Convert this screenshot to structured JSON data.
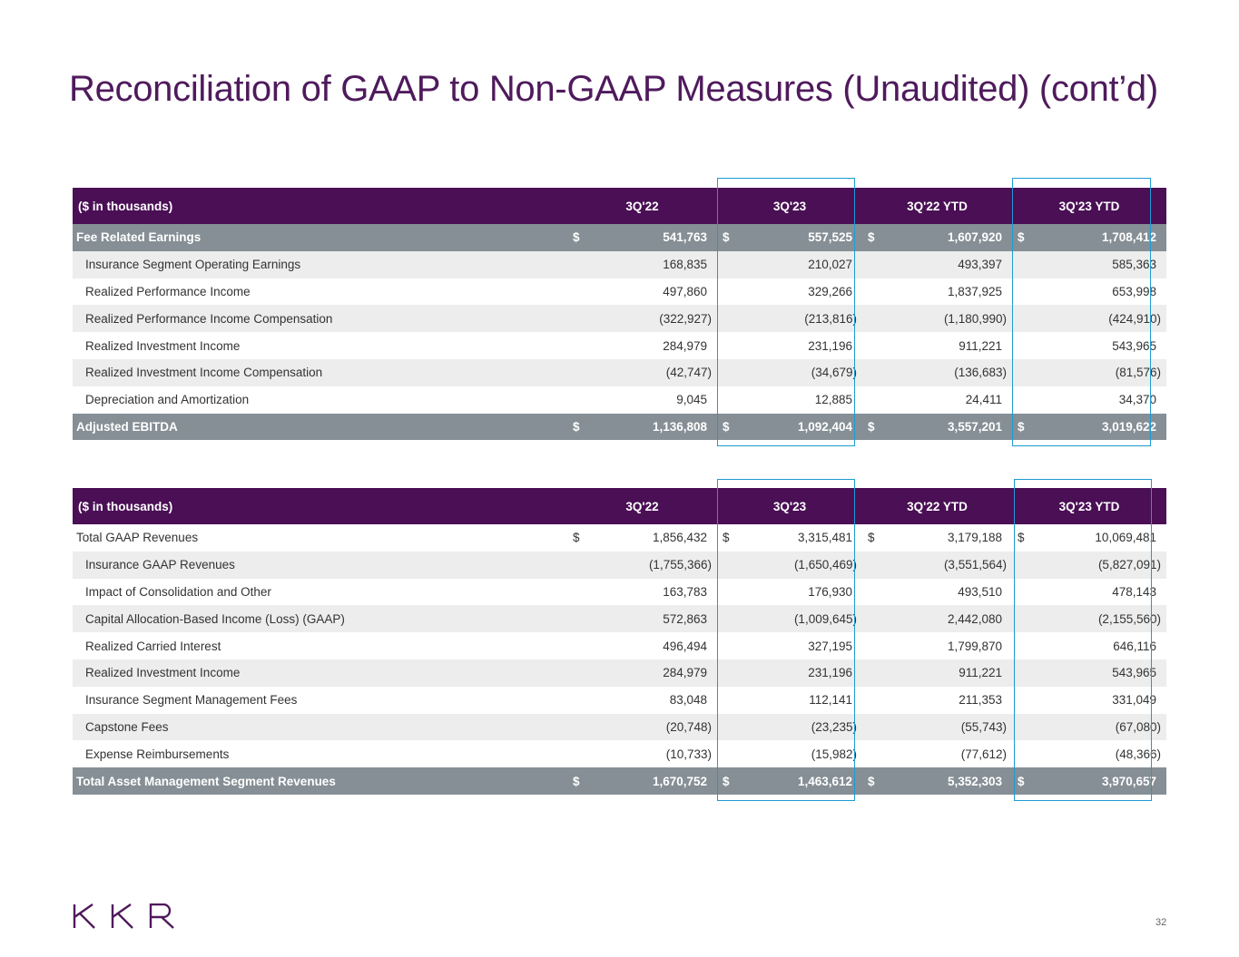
{
  "title": "Reconciliation of GAAP to Non-GAAP Measures (Unaudited) (cont’d)",
  "page_number": "32",
  "logo_text": "KKR",
  "colors": {
    "header": "#4a0f55",
    "total": "#858f95",
    "highlight": "#1d9bd4",
    "title": "#4f1a5c"
  },
  "tables": [
    {
      "headers": [
        "($ in thousands)",
        "3Q'22",
        "3Q'23",
        "3Q'22 YTD",
        "3Q'23 YTD"
      ],
      "rows": [
        {
          "label": "Fee Related Earnings",
          "type": "total",
          "dollar": true,
          "values": [
            "541,763",
            "557,525",
            "1,607,920",
            "1,708,412"
          ]
        },
        {
          "label": "Insurance Segment Operating Earnings",
          "values": [
            "168,835",
            "210,027",
            "493,397",
            "585,363"
          ]
        },
        {
          "label": "Realized Performance Income",
          "values": [
            "497,860",
            "329,266",
            "1,837,925",
            "653,998"
          ]
        },
        {
          "label": "Realized Performance Income Compensation",
          "values": [
            "(322,927)",
            "(213,816)",
            "(1,180,990)",
            "(424,910)"
          ]
        },
        {
          "label": "Realized Investment Income",
          "values": [
            "284,979",
            "231,196",
            "911,221",
            "543,965"
          ]
        },
        {
          "label": "Realized Investment Income Compensation",
          "values": [
            "(42,747)",
            "(34,679)",
            "(136,683)",
            "(81,576)"
          ]
        },
        {
          "label": "Depreciation and Amortization",
          "values": [
            "9,045",
            "12,885",
            "24,411",
            "34,370"
          ]
        },
        {
          "label": "Adjusted EBITDA",
          "type": "total",
          "dollar": true,
          "values": [
            "1,136,808",
            "1,092,404",
            "3,557,201",
            "3,019,622"
          ]
        }
      ]
    },
    {
      "headers": [
        "($ in thousands)",
        "3Q'22",
        "3Q'23",
        "3Q'22 YTD",
        "3Q'23 YTD"
      ],
      "rows": [
        {
          "label": "Total GAAP Revenues",
          "type": "first",
          "dollar": true,
          "values": [
            "1,856,432",
            "3,315,481",
            "3,179,188",
            "10,069,481"
          ]
        },
        {
          "label": "Insurance GAAP Revenues",
          "values": [
            "(1,755,366)",
            "(1,650,469)",
            "(3,551,564)",
            "(5,827,091)"
          ]
        },
        {
          "label": "Impact of Consolidation and Other",
          "values": [
            "163,783",
            "176,930",
            "493,510",
            "478,143"
          ]
        },
        {
          "label": "Capital Allocation-Based Income (Loss) (GAAP)",
          "values": [
            "572,863",
            "(1,009,645)",
            "2,442,080",
            "(2,155,560)"
          ]
        },
        {
          "label": "Realized Carried Interest",
          "values": [
            "496,494",
            "327,195",
            "1,799,870",
            "646,116"
          ]
        },
        {
          "label": "Realized Investment Income",
          "values": [
            "284,979",
            "231,196",
            "911,221",
            "543,965"
          ]
        },
        {
          "label": "Insurance Segment Management Fees",
          "values": [
            "83,048",
            "112,141",
            "211,353",
            "331,049"
          ]
        },
        {
          "label": "Capstone Fees",
          "values": [
            "(20,748)",
            "(23,235)",
            "(55,743)",
            "(67,080)"
          ]
        },
        {
          "label": "Expense Reimbursements",
          "values": [
            "(10,733)",
            "(15,982)",
            "(77,612)",
            "(48,366)"
          ]
        },
        {
          "label": "Total Asset Management Segment Revenues",
          "type": "total",
          "dollar": true,
          "values": [
            "1,670,752",
            "1,463,612",
            "5,352,303",
            "3,970,657"
          ]
        }
      ]
    }
  ]
}
